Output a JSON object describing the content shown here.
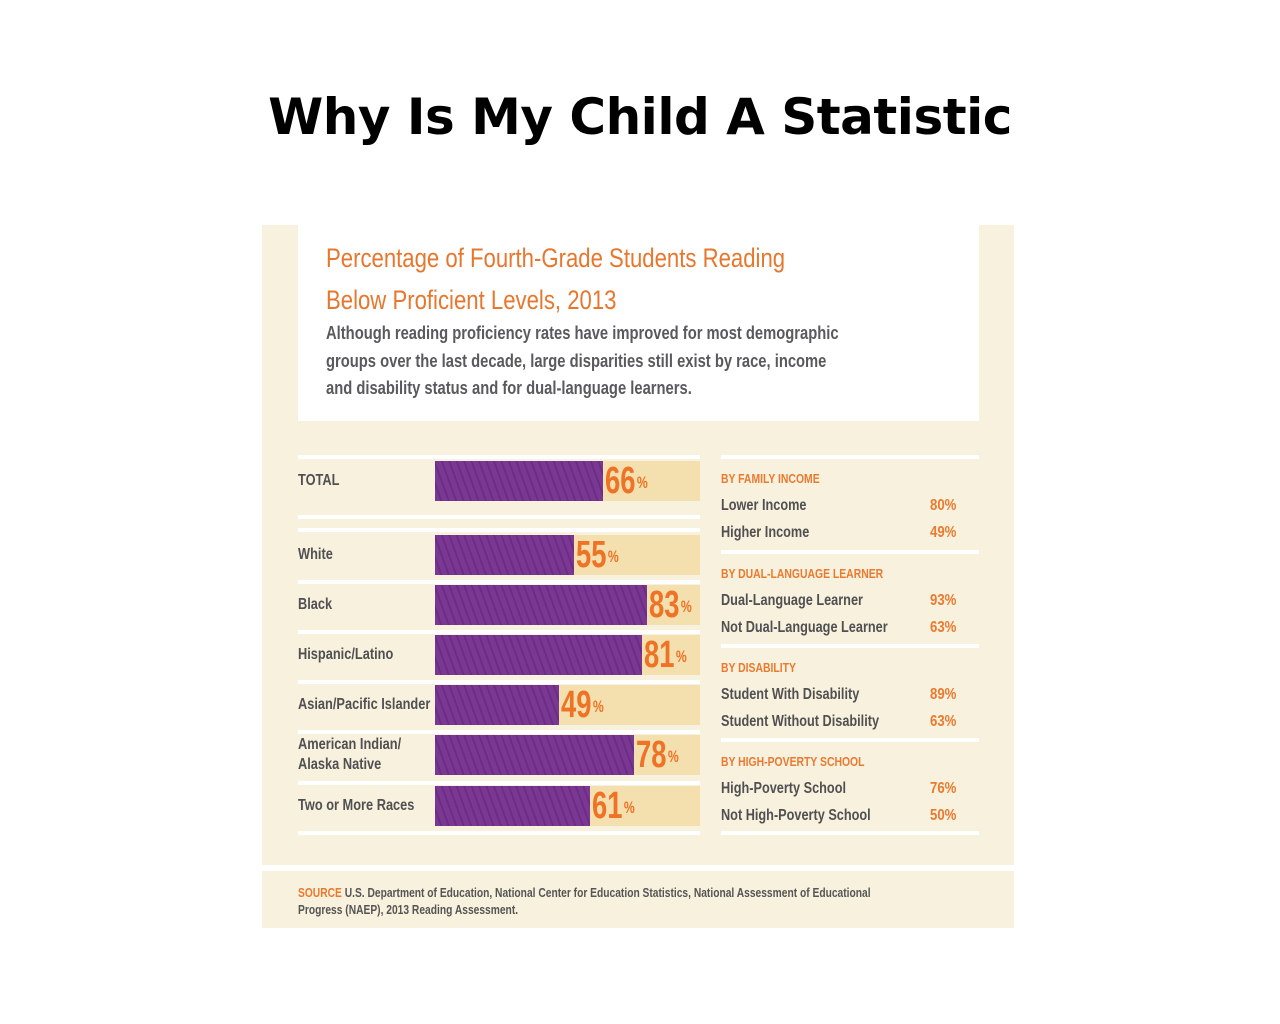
{
  "slide": {
    "title": "Why Is My Child A Statistic"
  },
  "colors": {
    "accent_orange": "#ee7326",
    "bar_purple": "#7a3893",
    "track": "#f4dfae",
    "panel_bg": "#f8f1dd",
    "text_gray": "#505052"
  },
  "chart_data": [
    {
      "type": "bar",
      "orientation": "horizontal",
      "title": "Percentage of Fourth-Grade Students Reading Below Proficient Levels, 2013",
      "title_lines": [
        "Percentage of Fourth-Grade Students Reading",
        "Below Proficient Levels, 2013"
      ],
      "subtitle_lines": [
        "Although reading proficiency rates have improved for most demographic",
        "groups over the last decade, large disparities still exist by race, income",
        "and disability status and for dual-language learners."
      ],
      "unit": "%",
      "xlim": [
        0,
        100
      ],
      "categories": [
        "TOTAL",
        "White",
        "Black",
        "Hispanic/Latino",
        "Asian/Pacific Islander",
        "American Indian/ Alaska Native",
        "Two or More Races"
      ],
      "category_lines": [
        [
          "TOTAL"
        ],
        [
          "White"
        ],
        [
          "Black"
        ],
        [
          "Hispanic/Latino"
        ],
        [
          "Asian/Pacific Islander"
        ],
        [
          "American Indian/",
          "Alaska Native"
        ],
        [
          "Two or More Races"
        ]
      ],
      "values": [
        66,
        55,
        83,
        81,
        49,
        78,
        61
      ],
      "value_labels": [
        "66",
        "55",
        "83",
        "81",
        "49",
        "78",
        "61"
      ]
    },
    {
      "type": "table",
      "sections": [
        {
          "heading": "BY FAMILY INCOME",
          "rows": [
            {
              "label": "Lower Income",
              "value": "80%"
            },
            {
              "label": "Higher Income",
              "value": "49%"
            }
          ]
        },
        {
          "heading": "BY DUAL-LANGUAGE LEARNER",
          "rows": [
            {
              "label": "Dual-Language Learner",
              "value": "93%"
            },
            {
              "label": "Not Dual-Language Learner",
              "value": "63%"
            }
          ]
        },
        {
          "heading": "BY DISABILITY",
          "rows": [
            {
              "label": "Student With Disability",
              "value": "89%"
            },
            {
              "label": "Student Without Disability",
              "value": "63%"
            }
          ]
        },
        {
          "heading": "BY HIGH-POVERTY SCHOOL",
          "rows": [
            {
              "label": "High-Poverty School",
              "value": "76%"
            },
            {
              "label": "Not High-Poverty School",
              "value": "50%"
            }
          ]
        }
      ]
    }
  ],
  "source": {
    "tag": "SOURCE",
    "line1": "U.S. Department of Education, National Center for Education Statistics, National Assessment of Educational",
    "line2": "Progress (NAEP), 2013 Reading Assessment."
  }
}
